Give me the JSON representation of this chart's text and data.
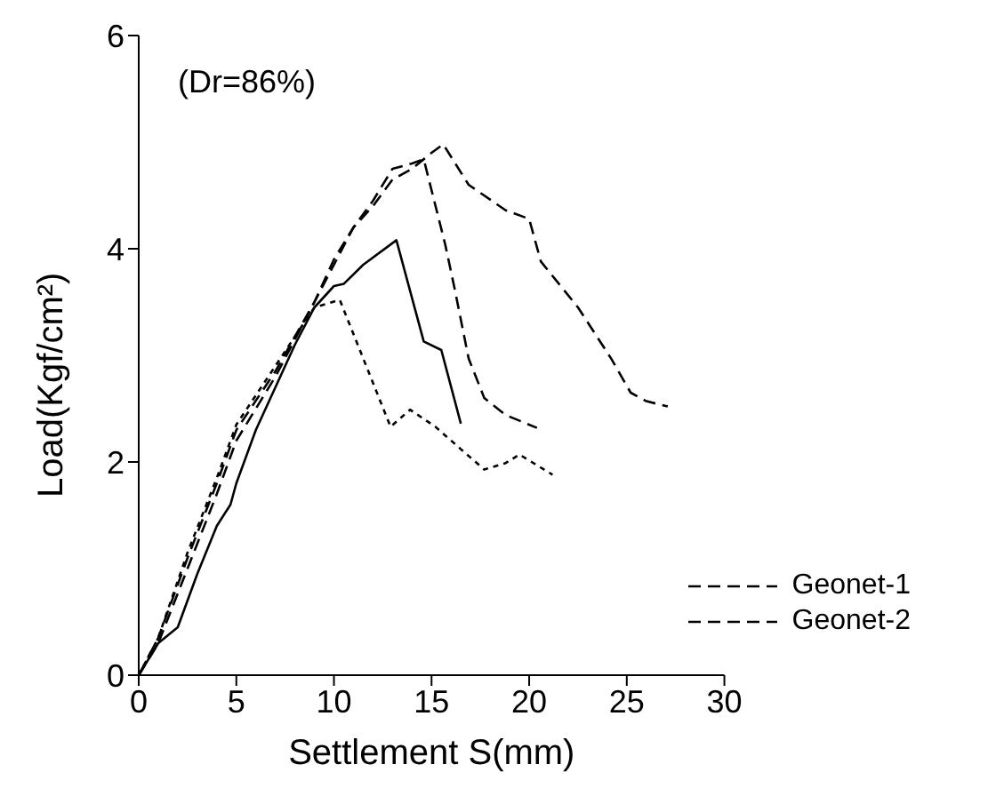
{
  "chart_data": {
    "type": "line",
    "xlabel": "Settlement S(mm)",
    "ylabel": "Load(Kgf/cm²)",
    "annotations": [
      "(Dr=86%)"
    ],
    "xlim": [
      0,
      30
    ],
    "ylim": [
      0,
      6
    ],
    "xticks": [
      0,
      5,
      10,
      15,
      20,
      25,
      30
    ],
    "yticks": [
      0,
      2,
      4,
      6
    ],
    "grid": false,
    "legend": "bottom right",
    "marker": "none",
    "series": [
      {
        "name": "Geonet-1",
        "color": "#000000",
        "line_style": "dashed",
        "x": [
          0,
          1,
          2.5,
          4,
          5,
          7,
          9,
          10,
          11,
          12,
          13,
          14,
          15,
          15.6,
          16.9,
          18.8,
          20,
          20.6,
          22.5,
          24.2,
          25.2,
          26,
          27.1
        ],
        "values": [
          0,
          0.3,
          1.0,
          1.7,
          2.2,
          2.8,
          3.5,
          3.9,
          4.2,
          4.4,
          4.65,
          4.75,
          4.9,
          4.98,
          4.6,
          4.36,
          4.28,
          3.88,
          3.45,
          2.97,
          2.65,
          2.57,
          2.52
        ]
      },
      {
        "name": "Geonet-2",
        "color": "#000000",
        "line_style": "dashed",
        "x": [
          0,
          1,
          2.5,
          4,
          5,
          7,
          9,
          10,
          11,
          12,
          13,
          14,
          14.6,
          15.7,
          16.2,
          16.9,
          17.7,
          18.8,
          20.4
        ],
        "values": [
          0,
          0.35,
          1.1,
          1.8,
          2.3,
          2.85,
          3.5,
          3.85,
          4.2,
          4.45,
          4.75,
          4.8,
          4.84,
          4.04,
          3.61,
          2.97,
          2.6,
          2.44,
          2.32
        ]
      },
      {
        "color": "#000000",
        "line_style": "dotted",
        "x": [
          0,
          1,
          2.5,
          4,
          5,
          7,
          9,
          10.3,
          12.9,
          13.9,
          15.2,
          16.5,
          17.7,
          18.8,
          19.5,
          21.2
        ],
        "values": [
          0,
          0.35,
          1.15,
          1.85,
          2.35,
          2.9,
          3.45,
          3.52,
          2.33,
          2.49,
          2.33,
          2.12,
          1.93,
          1.99,
          2.07,
          1.88
        ]
      },
      {
        "color": "#000000",
        "line_style": "solid",
        "x": [
          0,
          0.5,
          1,
          2,
          3,
          4,
          4.7,
          5,
          6,
          7,
          8,
          9,
          10,
          10.5,
          11.5,
          13.2,
          14.6,
          15.5,
          16.5
        ],
        "values": [
          0,
          0.15,
          0.3,
          0.45,
          0.95,
          1.4,
          1.6,
          1.8,
          2.3,
          2.7,
          3.1,
          3.45,
          3.65,
          3.67,
          3.85,
          4.08,
          3.13,
          3.05,
          2.36
        ]
      }
    ]
  }
}
